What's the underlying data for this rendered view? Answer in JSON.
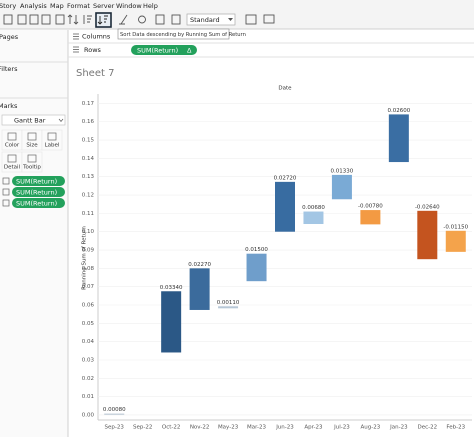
{
  "menu": [
    "Story",
    "Analysis",
    "Map",
    "Format",
    "Server",
    "Window",
    "Help"
  ],
  "toolbar": {
    "format_select": "Standard"
  },
  "tooltip": "Sort Data descending by Running Sum of Return",
  "sidebar": {
    "pages": "Pages",
    "filters": "Filters",
    "marks": "Marks",
    "mark_type": "Gantt Bar",
    "buttons": [
      "Color",
      "Size",
      "Label",
      "Detail",
      "Tooltip"
    ],
    "pills": [
      "SUM(Return)",
      "SUM(Return)",
      "SUM(Return)"
    ]
  },
  "shelves": {
    "columns": "Columns",
    "rows": "Rows",
    "rows_pill": "SUM(Return)",
    "rows_pill_icon": "Δ"
  },
  "sheet_title": "Sheet 7",
  "chart_data": {
    "type": "gantt",
    "title": "Date",
    "y_label": "Running Sum of Return",
    "categories": [
      "Sep-23",
      "Sep-22",
      "Oct-22",
      "Nov-22",
      "May-23",
      "Mar-23",
      "Jun-23",
      "Apr-23",
      "Jul-23",
      "Aug-23",
      "Jan-23",
      "Dec-22",
      "Feb-23"
    ],
    "values": [
      0.0008,
      null,
      0.0675,
      0.08,
      0.0593,
      0.088,
      0.1272,
      0.111,
      0.131,
      0.104,
      0.164,
      0.085,
      0.089
    ],
    "sizes": [
      0.0008,
      null,
      0.0334,
      0.0227,
      0.0011,
      0.015,
      0.0272,
      0.0068,
      0.0133,
      -0.0078,
      0.026,
      -0.0264,
      -0.0115
    ],
    "value_labels": [
      "0.00080",
      null,
      "0.03340",
      "0.02270",
      "0.00110",
      "0.01500",
      "0.02720",
      "0.00680",
      "0.01330",
      "-0.00780",
      "0.02600",
      "-0.02640",
      "-0.01150"
    ],
    "colors": [
      "#c9d3dc",
      null,
      "#2b5886",
      "#3b6b9c",
      "#b7c7d6",
      "#6f9ecb",
      "#386ca1",
      "#a3c6e4",
      "#7aaad5",
      "#f39a43",
      "#3a6ea3",
      "#c4541f",
      "#f4a34b"
    ],
    "ylim": [
      -0.0022,
      0.1735
    ],
    "yticks": [
      {
        "value": 0,
        "label": "0.00"
      },
      0.01,
      0.02,
      0.03,
      0.04,
      0.05,
      0.06,
      0.07,
      0.08,
      0.09,
      {
        "value": 0.1,
        "label": "0.10"
      },
      0.11,
      0.12,
      0.13,
      0.14,
      0.15,
      0.16,
      0.17
    ],
    "grid": true
  }
}
